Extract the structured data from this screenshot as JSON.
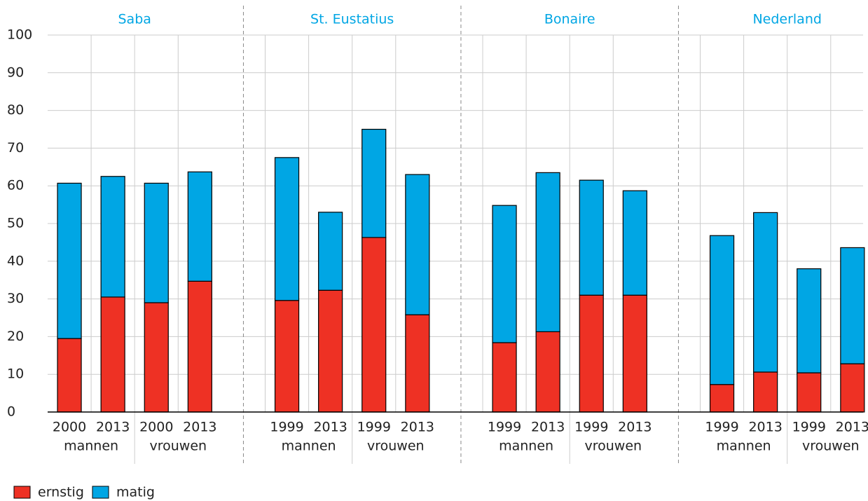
{
  "chart_data": {
    "type": "stacked_bar",
    "groups": [
      "Saba",
      "St. Eustatius",
      "Bonaire",
      "Nederland"
    ],
    "categories": [
      "2000",
      "2013",
      "2000",
      "2013",
      "1999",
      "2013",
      "1999",
      "2013",
      "1999",
      "2013",
      "1999",
      "2013",
      "1999",
      "2013",
      "1999",
      "2013"
    ],
    "subgroups": [
      "mannen",
      "vrouwen",
      "mannen",
      "vrouwen",
      "mannen",
      "vrouwen",
      "mannen",
      "vrouwen"
    ],
    "series": [
      {
        "name": "ernstig",
        "color": "#ee3124",
        "values": [
          19.5,
          30.5,
          29,
          34.7,
          29.6,
          32.3,
          46.3,
          25.8,
          18.4,
          21.3,
          31,
          31,
          7.3,
          10.6,
          10.4,
          12.8
        ]
      },
      {
        "name": "matig",
        "color": "#00a6e4",
        "values": [
          41.2,
          32,
          31.7,
          29,
          37.9,
          20.7,
          28.7,
          37.2,
          36.4,
          42.2,
          30.5,
          27.7,
          39.5,
          42.3,
          27.6,
          30.8
        ]
      }
    ],
    "ylim": [
      0,
      100
    ],
    "yticks": [
      0,
      10,
      20,
      30,
      40,
      50,
      60,
      70,
      80,
      90,
      100
    ],
    "grid": true
  }
}
